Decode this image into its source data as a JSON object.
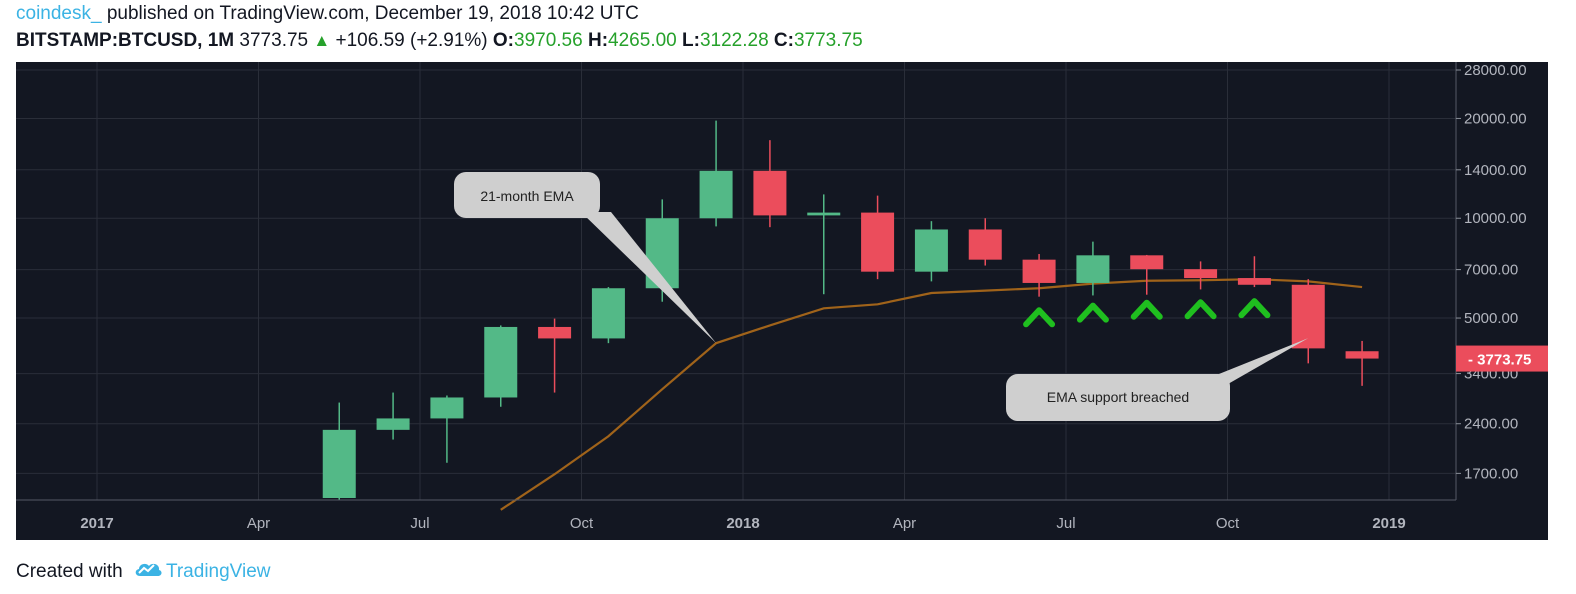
{
  "header": {
    "publisher": "coindesk_",
    "published_text": " published on TradingView.com, December 19, 2018 10:42 UTC",
    "symbol": "BITSTAMP:BTCUSD, 1M",
    "last": "3773.75",
    "change": "+106.59 (+2.91%)",
    "o_label": "O:",
    "o_value": "3970.56",
    "h_label": "H:",
    "h_value": "4265.00",
    "l_label": "L:",
    "l_value": "3122.28",
    "c_label": "C:",
    "c_value": "3773.75"
  },
  "footer": {
    "created_with": "Created with",
    "brand": "TradingView"
  },
  "colors": {
    "background": "#131722",
    "up": "#53b987",
    "down": "#eb4d5c",
    "ema": "#a0631a",
    "arrows": "#1fbf1f",
    "grid": "#2a2e39"
  },
  "chart_data": {
    "type": "candlestick",
    "y_scale": "log",
    "ylim": [
      1300,
      28000
    ],
    "y_ticks": [
      1700,
      2400,
      3400,
      5000,
      7000,
      10000,
      14000,
      20000,
      28000
    ],
    "y_tick_labels": [
      "1700.00",
      "2400.00",
      "3400.00",
      "5000.00",
      "7000.00",
      "10000.00",
      "14000.00",
      "20000.00",
      "28000.00"
    ],
    "x_ticks": [
      {
        "label": "2017",
        "month": "2017-01",
        "bold": true
      },
      {
        "label": "Apr",
        "month": "2017-04",
        "bold": false
      },
      {
        "label": "Jul",
        "month": "2017-07",
        "bold": false
      },
      {
        "label": "Oct",
        "month": "2017-10",
        "bold": false
      },
      {
        "label": "2018",
        "month": "2018-01",
        "bold": true
      },
      {
        "label": "Apr",
        "month": "2018-04",
        "bold": false
      },
      {
        "label": "Jul",
        "month": "2018-07",
        "bold": false
      },
      {
        "label": "Oct",
        "month": "2018-10",
        "bold": false
      },
      {
        "label": "2019",
        "month": "2019-01",
        "bold": true
      }
    ],
    "first_month": "2017-01",
    "last_month": "2019-01",
    "candles": [
      {
        "month": "2017-05",
        "open": 1350,
        "high": 2780,
        "low": 1300,
        "close": 2300
      },
      {
        "month": "2017-06",
        "open": 2300,
        "high": 2980,
        "low": 2150,
        "close": 2490
      },
      {
        "month": "2017-07",
        "open": 2490,
        "high": 2920,
        "low": 1830,
        "close": 2880
      },
      {
        "month": "2017-08",
        "open": 2880,
        "high": 4750,
        "low": 2700,
        "close": 4700
      },
      {
        "month": "2017-09",
        "open": 4700,
        "high": 4980,
        "low": 2980,
        "close": 4340
      },
      {
        "month": "2017-10",
        "open": 4340,
        "high": 6200,
        "low": 4200,
        "close": 6150
      },
      {
        "month": "2017-11",
        "open": 6150,
        "high": 11400,
        "low": 5600,
        "close": 10000
      },
      {
        "month": "2017-12",
        "open": 10000,
        "high": 19700,
        "low": 9450,
        "close": 13900
      },
      {
        "month": "2018-01",
        "open": 13900,
        "high": 17200,
        "low": 9400,
        "close": 10200
      },
      {
        "month": "2018-02",
        "open": 10200,
        "high": 11800,
        "low": 5900,
        "close": 10400
      },
      {
        "month": "2018-03",
        "open": 10400,
        "high": 11700,
        "low": 6550,
        "close": 6900
      },
      {
        "month": "2018-04",
        "open": 6900,
        "high": 9800,
        "low": 6450,
        "close": 9250
      },
      {
        "month": "2018-05",
        "open": 9250,
        "high": 10000,
        "low": 7200,
        "close": 7500
      },
      {
        "month": "2018-06",
        "open": 7500,
        "high": 7800,
        "low": 5800,
        "close": 6380
      },
      {
        "month": "2018-07",
        "open": 6380,
        "high": 8500,
        "low": 5850,
        "close": 7730
      },
      {
        "month": "2018-08",
        "open": 7730,
        "high": 7750,
        "low": 5880,
        "close": 7020
      },
      {
        "month": "2018-09",
        "open": 7020,
        "high": 7410,
        "low": 6100,
        "close": 6600
      },
      {
        "month": "2018-10",
        "open": 6600,
        "high": 7680,
        "low": 6200,
        "close": 6300
      },
      {
        "month": "2018-11",
        "open": 6300,
        "high": 6550,
        "low": 3650,
        "close": 4050
      },
      {
        "month": "2018-12",
        "open": 3970.56,
        "high": 4265.0,
        "low": 3122.28,
        "close": 3773.75
      }
    ],
    "ema_label": "21-month EMA",
    "ema": [
      {
        "month": "2017-08",
        "value": 1320
      },
      {
        "month": "2017-09",
        "value": 1690
      },
      {
        "month": "2017-10",
        "value": 2200
      },
      {
        "month": "2017-11",
        "value": 3050
      },
      {
        "month": "2017-12",
        "value": 4200
      },
      {
        "month": "2018-01",
        "value": 4750
      },
      {
        "month": "2018-02",
        "value": 5350
      },
      {
        "month": "2018-03",
        "value": 5500
      },
      {
        "month": "2018-04",
        "value": 5950
      },
      {
        "month": "2018-05",
        "value": 6050
      },
      {
        "month": "2018-06",
        "value": 6150
      },
      {
        "month": "2018-07",
        "value": 6350
      },
      {
        "month": "2018-08",
        "value": 6480
      },
      {
        "month": "2018-09",
        "value": 6500
      },
      {
        "month": "2018-10",
        "value": 6550
      },
      {
        "month": "2018-11",
        "value": 6450
      },
      {
        "month": "2018-12",
        "value": 6200
      }
    ],
    "support_marks": [
      "2018-06",
      "2018-07",
      "2018-08",
      "2018-09",
      "2018-10"
    ],
    "annotations": [
      {
        "text": "21-month EMA",
        "target_month": "2017-12",
        "target_value": 4200
      },
      {
        "text": "EMA support breached",
        "target_month": "2018-11",
        "target_value": 4350
      }
    ],
    "price_label": "3773.75"
  }
}
